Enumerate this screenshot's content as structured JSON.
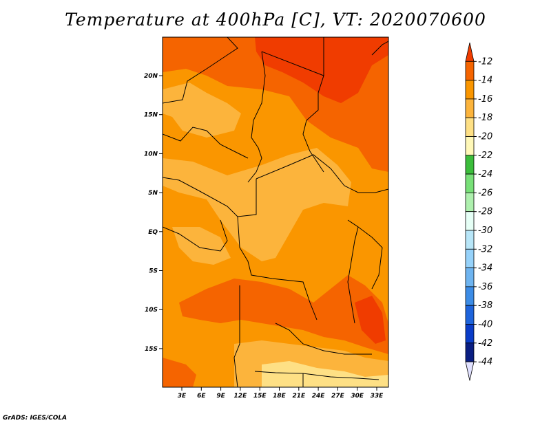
{
  "title": "Temperature at 400hPa [C], VT: 2020070600",
  "credit": "GrADS: IGES/COLA",
  "latitude_labels": [
    "20N",
    "15N",
    "10N",
    "5N",
    "EQ",
    "5S",
    "10S",
    "15S"
  ],
  "longitude_labels": [
    "3E",
    "6E",
    "9E",
    "12E",
    "15E",
    "18E",
    "21E",
    "24E",
    "27E",
    "30E",
    "33E"
  ],
  "colorbar": {
    "levels": [
      "-12",
      "-14",
      "-16",
      "-18",
      "-20",
      "-22",
      "-24",
      "-26",
      "-28",
      "-30",
      "-32",
      "-34",
      "-36",
      "-38",
      "-40",
      "-42",
      "-44"
    ],
    "colors": [
      "#f03c00",
      "#f56400",
      "#fa9600",
      "#fcb43c",
      "#fee085",
      "#fff8b8",
      "#3bbd3b",
      "#78e078",
      "#aef0ae",
      "#e6fff6",
      "#b8e6f8",
      "#96d2fa",
      "#6eb4f0",
      "#3c8ce6",
      "#1e64dc",
      "#0a3cc8",
      "#0a1e82",
      "#e1e1ff"
    ]
  },
  "map": {
    "base_color": "#fa9600",
    "warm_color": "#f56400",
    "hot_color": "#f03c00",
    "cool_color": "#fcb43c",
    "cold_color": "#fee085",
    "border_color": "#000000"
  }
}
